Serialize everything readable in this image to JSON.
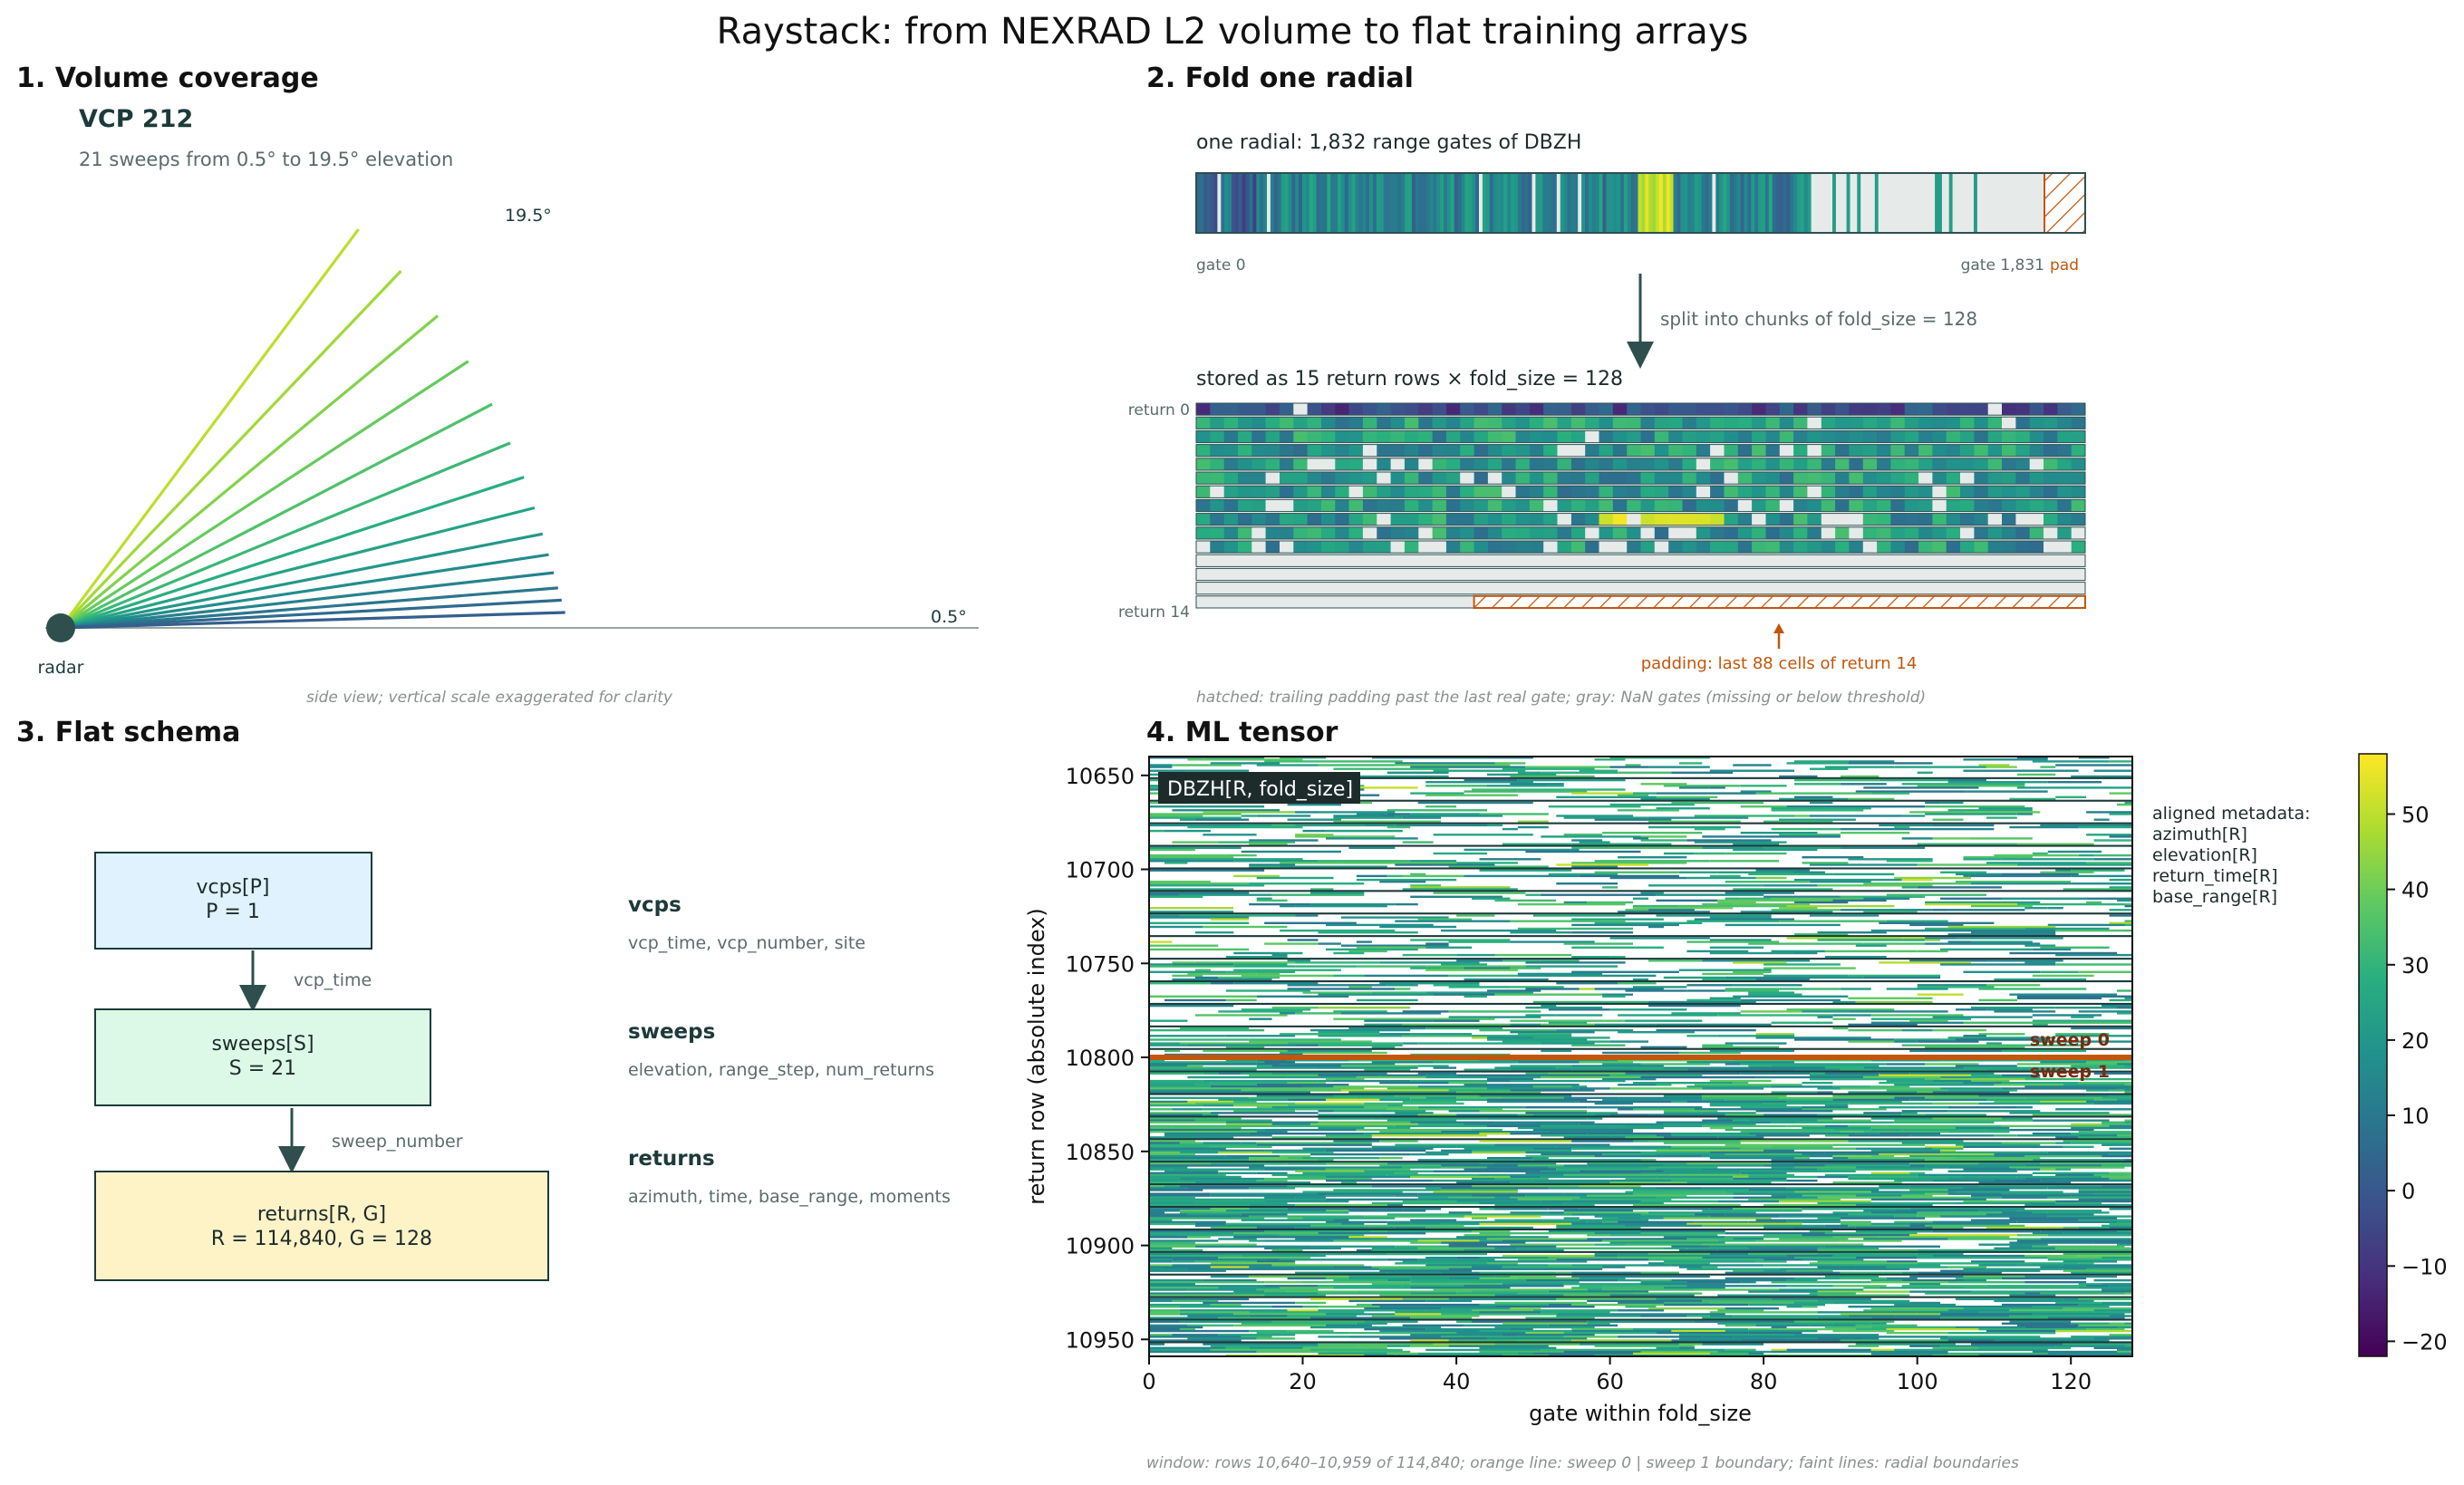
{
  "title": "Raystack: from NEXRAD L2 volume to flat training arrays",
  "colors": {
    "ink": "#1d3a3a",
    "muted": "#5a6b6b",
    "faint": "#8a8f8f",
    "orange": "#c2560c",
    "dark_orange": "#7a2a0c",
    "nan_gray": "#e6ebea",
    "vcps_fill": "#e0f2fd",
    "sweeps_fill": "#dcf9e7",
    "returns_fill": "#fdf3c7"
  },
  "panel1": {
    "heading": "1. Volume coverage",
    "vcp_label": "VCP 212",
    "subtitle": "21 sweeps from 0.5° to 19.5° elevation",
    "top_label": "19.5°",
    "bottom_label": "0.5°",
    "radar_label": "radar",
    "caption": "side view; vertical scale exaggerated for clarity",
    "sweep_angles_deg": [
      19.5,
      15.6,
      12.5,
      10.0,
      8.0,
      6.4,
      5.1,
      4.0,
      3.1,
      2.4,
      1.8,
      1.3,
      0.9,
      0.5
    ]
  },
  "panel2": {
    "heading": "2. Fold one radial",
    "radial_label": "one radial: 1,832 range gates of DBZH",
    "gate_start": "gate 0",
    "gate_end": "gate 1,831",
    "pad_label": "pad",
    "split_label": "split into chunks of fold_size = 128",
    "stored_label": "stored as 15 return rows × fold_size = 128",
    "return_first": "return 0",
    "return_last": "return 14",
    "padding_note": "padding: last 88 cells of return 14",
    "caption": "hatched: trailing padding past the last real gate; gray: NaN gates (missing or below threshold)",
    "total_gates": 1832,
    "fold_size": 128,
    "n_rows": 15,
    "pad_cells": 88
  },
  "panel3": {
    "heading": "3. Flat schema",
    "box_vcps_title": "vcps[P]",
    "box_vcps_sub": "P = 1",
    "arrow1_label": "vcp_time",
    "box_sweeps_title": "sweeps[S]",
    "box_sweeps_sub": "S = 21",
    "arrow2_label": "sweep_number",
    "box_returns_title": "returns[R, G]",
    "box_returns_sub": "R = 114,840, G = 128",
    "desc_vcps_title": "vcps",
    "desc_vcps_fields": "vcp_time, vcp_number, site",
    "desc_sweeps_title": "sweeps",
    "desc_sweeps_fields": "elevation, range_step, num_returns",
    "desc_returns_title": "returns",
    "desc_returns_fields": "azimuth, time, base_range, moments"
  },
  "panel4": {
    "heading": "4. ML tensor",
    "tag": "DBZH[R, fold_size]",
    "ylabel": "return row (absolute index)",
    "xlabel": "gate within fold_size",
    "sweep0_label": "sweep 0",
    "sweep1_label": "sweep 1",
    "metadata_title": "aligned metadata:",
    "metadata_items": [
      "azimuth[R]",
      "elevation[R]",
      "return_time[R]",
      "base_range[R]"
    ],
    "caption": "window: rows 10,640–10,959 of 114,840; orange line: sweep 0 | sweep 1 boundary; faint lines: radial boundaries"
  },
  "chart_data": {
    "type": "heatmap",
    "title": "",
    "xlabel": "gate within fold_size",
    "ylabel": "return row (absolute index)",
    "xlim": [
      0,
      128
    ],
    "ylim": [
      10959,
      10640
    ],
    "x_ticks": [
      0,
      20,
      40,
      60,
      80,
      100,
      120
    ],
    "y_ticks": [
      10650,
      10700,
      10750,
      10800,
      10850,
      10900,
      10950
    ],
    "sweep_boundary_row": 10800,
    "colorbar": {
      "colormap": "viridis",
      "range": [
        -22,
        58
      ],
      "ticks": [
        -20,
        -10,
        0,
        10,
        20,
        30,
        40,
        50
      ]
    }
  }
}
